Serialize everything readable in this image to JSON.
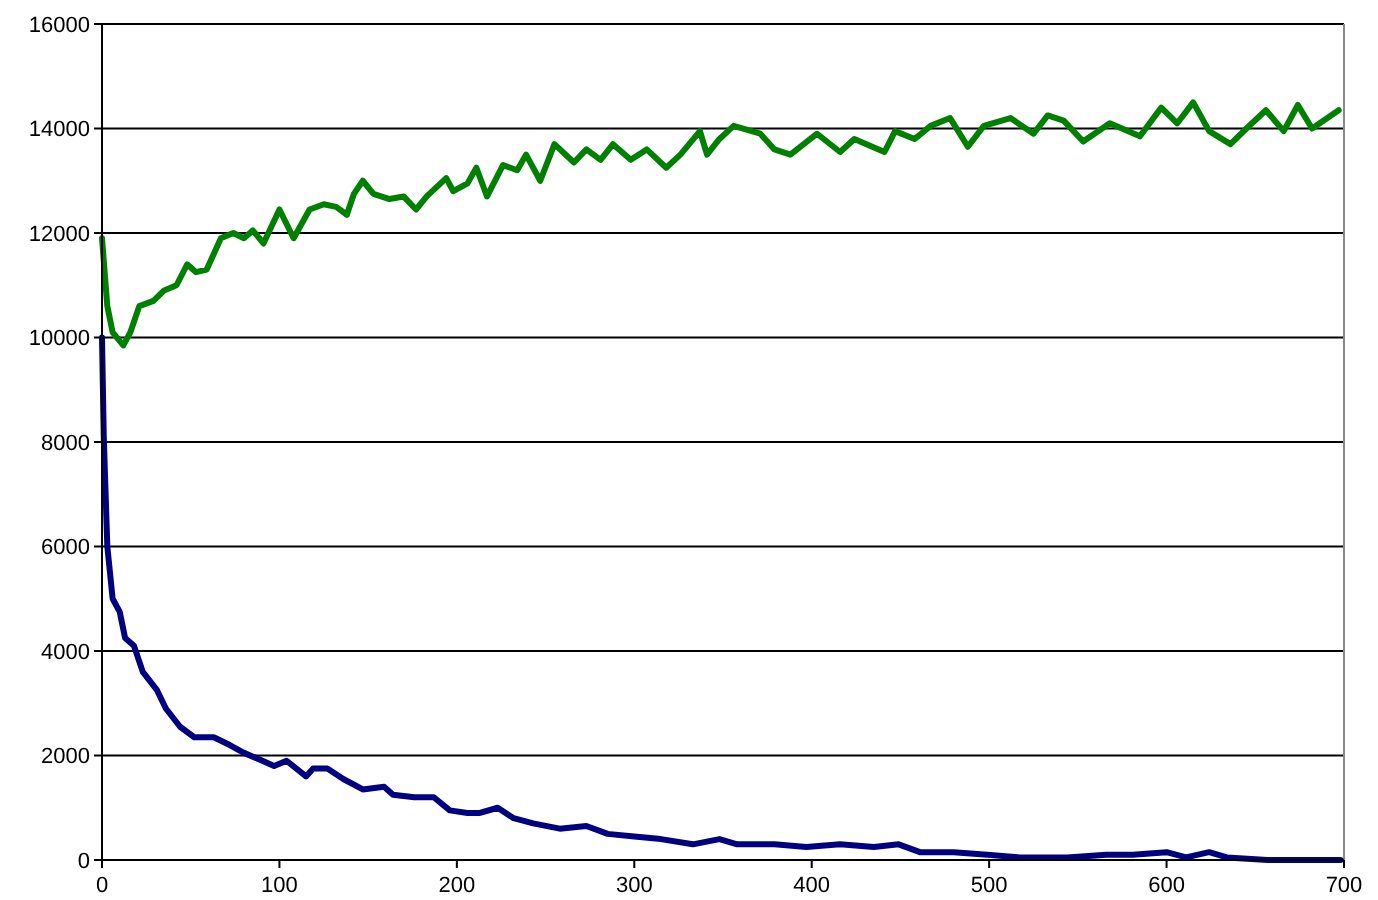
{
  "chart_data": {
    "type": "line",
    "xlim": [
      0,
      700
    ],
    "xticks": [
      0,
      100,
      200,
      300,
      400,
      500,
      600,
      700
    ],
    "ylim": [
      0,
      16000
    ],
    "yticks": [
      0,
      2000,
      4000,
      6000,
      8000,
      10000,
      12000,
      14000,
      16000
    ],
    "grid": "y",
    "marker": "none",
    "line_style": "solid",
    "series": [
      {
        "color": "#008000",
        "x": [
          0,
          3,
          6,
          12,
          16,
          21,
          29,
          35,
          42,
          48,
          53,
          59,
          67,
          74,
          80,
          85,
          91,
          100,
          108,
          117,
          125,
          132,
          138,
          142,
          147,
          153,
          162,
          170,
          177,
          183,
          194,
          198,
          206,
          211,
          217,
          226,
          234,
          239,
          247,
          255,
          266,
          273,
          281,
          288,
          298,
          307,
          318,
          326,
          337,
          341,
          348,
          356,
          371,
          379,
          388,
          403,
          416,
          424,
          441,
          447,
          458,
          467,
          478,
          488,
          497,
          512,
          525,
          533,
          542,
          553,
          568,
          585,
          597,
          606,
          615,
          624,
          636,
          645,
          656,
          666,
          674,
          682,
          697
        ],
        "values": [
          11900,
          10600,
          10100,
          9850,
          10100,
          10600,
          10700,
          10900,
          11000,
          11400,
          11250,
          11300,
          11900,
          12000,
          11900,
          12050,
          11800,
          12450,
          11900,
          12450,
          12550,
          12500,
          12350,
          12750,
          13000,
          12750,
          12650,
          12700,
          12450,
          12700,
          13050,
          12800,
          12950,
          13250,
          12700,
          13300,
          13200,
          13500,
          13000,
          13700,
          13350,
          13600,
          13400,
          13700,
          13400,
          13600,
          13250,
          13500,
          13950,
          13500,
          13800,
          14050,
          13900,
          13600,
          13500,
          13900,
          13550,
          13800,
          13550,
          13950,
          13800,
          14050,
          14200,
          13650,
          14050,
          14200,
          13900,
          14250,
          14150,
          13750,
          14100,
          13850,
          14400,
          14100,
          14500,
          13950,
          13700,
          14000,
          14350,
          13950,
          14450,
          14000,
          14350
        ]
      },
      {
        "color": "#000080",
        "x": [
          0,
          1,
          3,
          6,
          10,
          13,
          18,
          23,
          31,
          36,
          44,
          52,
          63,
          72,
          80,
          87,
          97,
          104,
          115,
          119,
          127,
          136,
          147,
          159,
          164,
          176,
          187,
          196,
          206,
          213,
          223,
          232,
          243,
          258,
          273,
          285,
          300,
          315,
          333,
          348,
          358,
          363,
          379,
          397,
          416,
          435,
          449,
          461,
          480,
          499,
          517,
          544,
          566,
          581,
          600,
          611,
          624,
          634,
          657,
          698
        ],
        "values": [
          10000,
          8100,
          6000,
          5000,
          4750,
          4250,
          4100,
          3600,
          3250,
          2900,
          2550,
          2350,
          2350,
          2200,
          2050,
          1950,
          1800,
          1900,
          1600,
          1750,
          1750,
          1550,
          1350,
          1400,
          1250,
          1200,
          1200,
          950,
          900,
          900,
          1000,
          800,
          700,
          600,
          650,
          500,
          450,
          400,
          300,
          400,
          300,
          300,
          300,
          250,
          300,
          250,
          300,
          150,
          150,
          100,
          50,
          50,
          100,
          100,
          150,
          50,
          150,
          50,
          0,
          0
        ]
      }
    ]
  }
}
